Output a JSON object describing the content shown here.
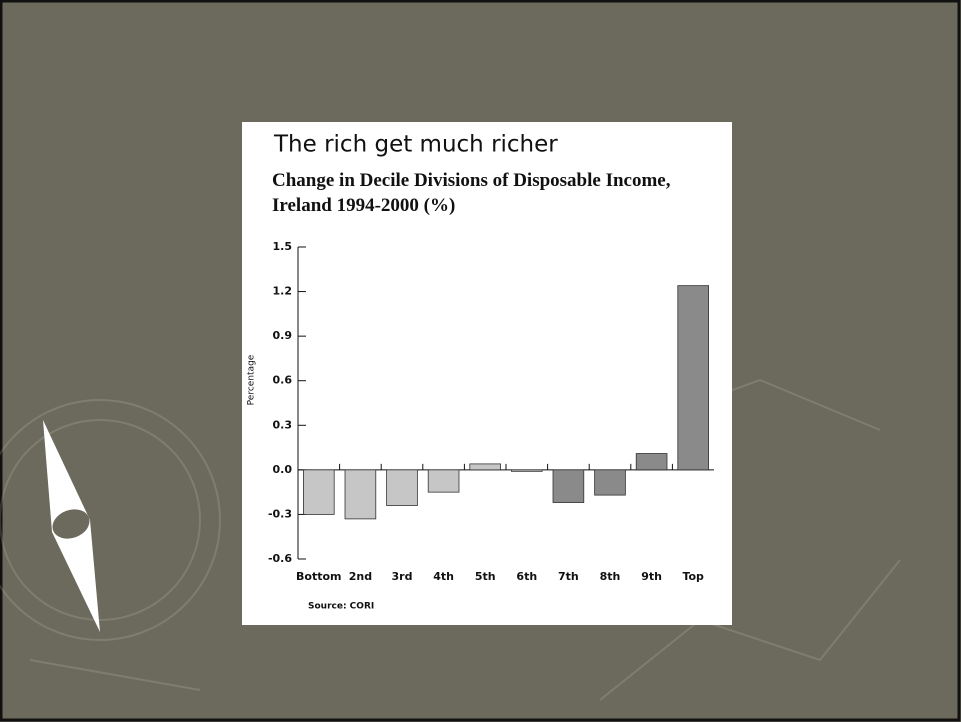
{
  "chart_data": {
    "type": "bar",
    "title": "The rich get much richer",
    "subtitle": "Change in Decile Divisions of Disposable Income, Ireland 1994-2000 (%)",
    "y_label": "Percentage",
    "source": "Source: CORI",
    "categories": [
      "Bottom",
      "2nd",
      "3rd",
      "4th",
      "5th",
      "6th",
      "7th",
      "8th",
      "9th",
      "Top"
    ],
    "values": [
      -0.3,
      -0.33,
      -0.24,
      -0.15,
      0.04,
      -0.01,
      -0.22,
      -0.17,
      0.11,
      1.24
    ],
    "colors": [
      "#c6c6c6",
      "#c6c6c6",
      "#c6c6c6",
      "#c6c6c6",
      "#c6c6c6",
      "#c6c6c6",
      "#8a8a8a",
      "#8a8a8a",
      "#8a8a8a",
      "#8a8a8a"
    ],
    "ylim": [
      -0.6,
      1.5
    ],
    "yticks": [
      -0.6,
      -0.3,
      {
        "value": 0,
        "label": "0.0"
      },
      0.3,
      0.6,
      0.9,
      1.2,
      1.5
    ],
    "grid": false
  }
}
